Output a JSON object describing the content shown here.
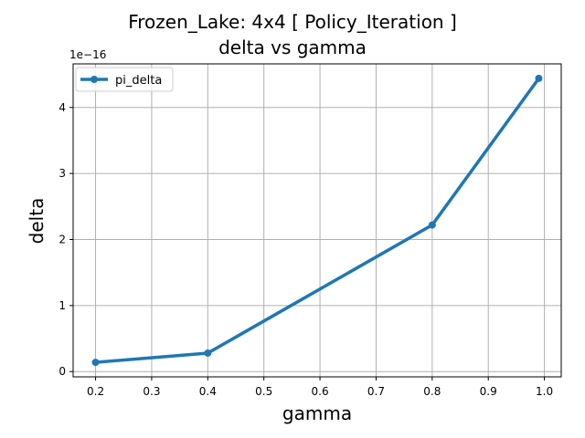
{
  "chart_data": {
    "type": "line",
    "title_line1": "Frozen_Lake: 4x4 [ Policy_Iteration ]",
    "title_line2": "delta vs gamma",
    "xlabel": "gamma",
    "ylabel": "delta",
    "y_offset_label": "1e−16",
    "x": [
      0.2,
      0.4,
      0.8,
      0.99
    ],
    "series": [
      {
        "name": "pi_delta",
        "values": [
          0.14,
          0.28,
          2.22,
          4.44
        ],
        "color": "#1f77b4"
      }
    ],
    "xlim": [
      0.16,
      1.03
    ],
    "ylim": [
      -0.08,
      4.66
    ],
    "x_ticks": [
      0.2,
      0.3,
      0.4,
      0.5,
      0.6,
      0.7,
      0.8,
      0.9,
      1.0
    ],
    "x_tick_labels": [
      "0.2",
      "0.3",
      "0.4",
      "0.5",
      "0.6",
      "0.7",
      "0.8",
      "0.9",
      "1.0"
    ],
    "y_ticks": [
      0,
      1,
      2,
      3,
      4
    ],
    "y_tick_labels": [
      "0",
      "1",
      "2",
      "3",
      "4"
    ],
    "grid": true,
    "legend_position": "top-left"
  }
}
